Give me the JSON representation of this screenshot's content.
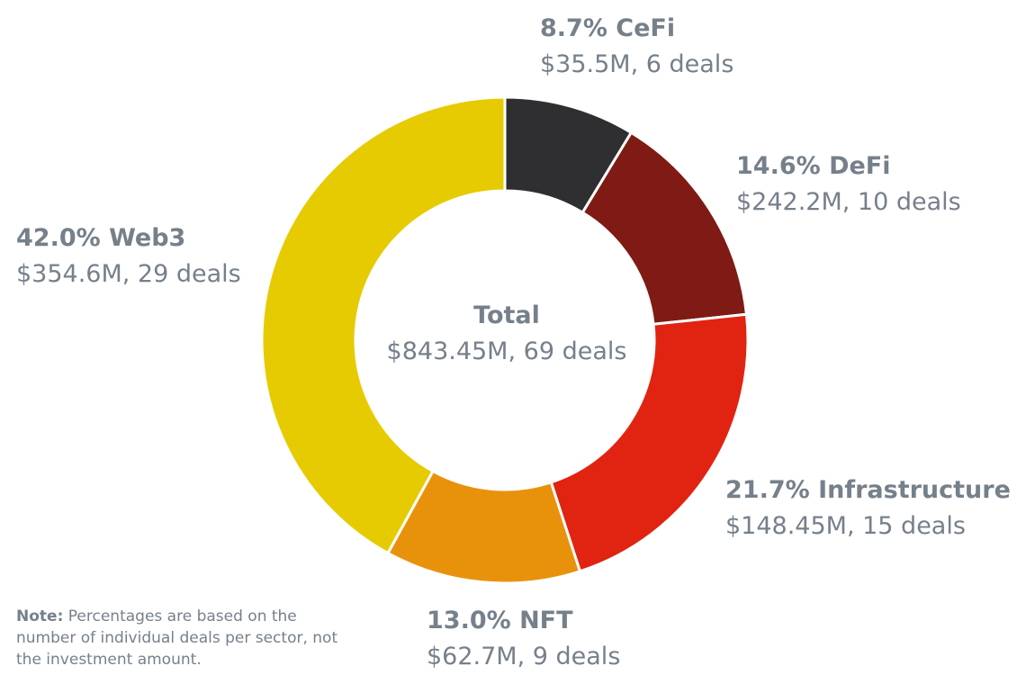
{
  "chart_data": {
    "type": "pie",
    "variant": "donut",
    "title": "",
    "slices": [
      {
        "key": "cefi",
        "name": "CeFi",
        "percent_label": "8.7%",
        "value": 8.7,
        "amount": "$35.5M, 6 deals",
        "color": "#2f2f31"
      },
      {
        "key": "defi",
        "name": "DeFi",
        "percent_label": "14.6%",
        "value": 14.6,
        "amount": "$242.2M, 10 deals",
        "color": "#7f1a14"
      },
      {
        "key": "infrastructure",
        "name": "Infrastructure",
        "percent_label": "21.7%",
        "value": 21.7,
        "amount": "$148.45M, 15 deals",
        "color": "#e02411"
      },
      {
        "key": "nft",
        "name": "NFT",
        "percent_label": "13.0%",
        "value": 13.0,
        "amount": "$62.7M, 9 deals",
        "color": "#e8920c"
      },
      {
        "key": "web3",
        "name": "Web3",
        "percent_label": "42.0%",
        "value": 42.0,
        "amount": "$354.6M, 29 deals",
        "color": "#e6cb03"
      }
    ],
    "center": {
      "title": "Total",
      "amount": "$843.45M, 69 deals"
    }
  },
  "labels": {
    "cefi": {
      "title": "8.7% CeFi",
      "amount": "$35.5M, 6 deals"
    },
    "defi": {
      "title": "14.6% DeFi",
      "amount": "$242.2M, 10 deals"
    },
    "infrastructure": {
      "title": "21.7% Infrastructure",
      "amount": "$148.45M, 15 deals"
    },
    "nft": {
      "title": "13.0% NFT",
      "amount": "$62.7M, 9 deals"
    },
    "web3": {
      "title": "42.0% Web3",
      "amount": "$354.6M, 29 deals"
    }
  },
  "note": {
    "title": "Note:",
    "text": " Percentages are based on the number of individual deals per sector, not the investment amount."
  },
  "colors": {
    "text": "#76808b",
    "background": "#ffffff",
    "separator": "#ffffff"
  }
}
